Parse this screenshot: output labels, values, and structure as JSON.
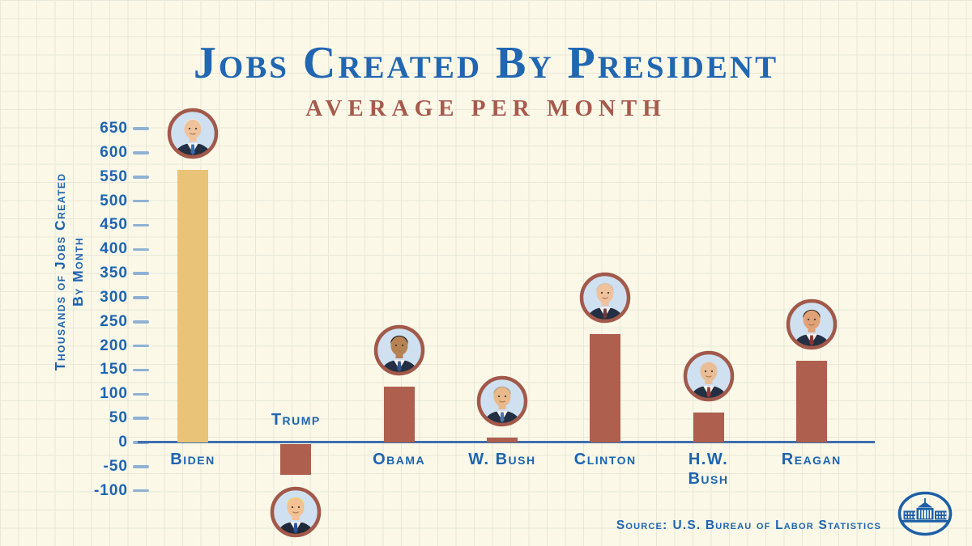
{
  "title": "Jobs Created By President",
  "subtitle": "Average Per Month",
  "source": {
    "prefix": "Source:",
    "text": "U.S. Bureau of Labor Statistics"
  },
  "logo": "white-house-icon",
  "colors": {
    "background": "#fbf8e8",
    "grid_line": "#e7e8d9",
    "title_blue": "#2166b1",
    "subtitle_red": "#a65a4c",
    "label_blue": "#1d64b0",
    "tick_dash": "#8fb1d4",
    "axis_line": "#3e6fae",
    "bar_red": "#ae5f4d",
    "bar_gold": "#e9c377",
    "portrait_ring": "#a2594a",
    "portrait_bg": "#cfe0f1",
    "logo_blue": "#1d5fa7"
  },
  "chart_data": {
    "type": "bar",
    "title": "Jobs Created By President",
    "subtitle": "Average Per Month",
    "xlabel": "",
    "ylabel": "Thousands of Jobs Created By Month",
    "ylabel_lines": [
      "Thousands of Jobs Created",
      "By Month"
    ],
    "ylim": [
      -100,
      650
    ],
    "y_tick_step": 50,
    "y_ticks": [
      650,
      600,
      550,
      500,
      450,
      400,
      350,
      300,
      250,
      200,
      150,
      100,
      50,
      0,
      -50,
      -100
    ],
    "grid": false,
    "legend": "none",
    "categories": [
      "Biden",
      "Trump",
      "Obama",
      "W. Bush",
      "Clinton",
      "H.W. Bush",
      "Reagan"
    ],
    "values": [
      565,
      -65,
      115,
      10,
      225,
      62,
      170
    ],
    "presidents": [
      {
        "id": "biden",
        "label": "Biden",
        "value": 565,
        "bar_color": "#e9c377",
        "portrait": "biden-portrait-icon"
      },
      {
        "id": "trump",
        "label": "Trump",
        "value": -65,
        "bar_color": "#ae5f4d",
        "portrait": "trump-portrait-icon"
      },
      {
        "id": "obama",
        "label": "Obama",
        "value": 115,
        "bar_color": "#ae5f4d",
        "portrait": "obama-portrait-icon"
      },
      {
        "id": "wbush",
        "label": "W. Bush",
        "value": 10,
        "bar_color": "#ae5f4d",
        "portrait": "w-bush-portrait-icon"
      },
      {
        "id": "clinton",
        "label": "Clinton",
        "value": 225,
        "bar_color": "#ae5f4d",
        "portrait": "clinton-portrait-icon"
      },
      {
        "id": "hwbush",
        "label": "H.W.\nBush",
        "value": 62,
        "bar_color": "#ae5f4d",
        "portrait": "h-w-bush-portrait-icon"
      },
      {
        "id": "reagan",
        "label": "Reagan",
        "value": 170,
        "bar_color": "#ae5f4d",
        "portrait": "reagan-portrait-icon"
      }
    ]
  }
}
